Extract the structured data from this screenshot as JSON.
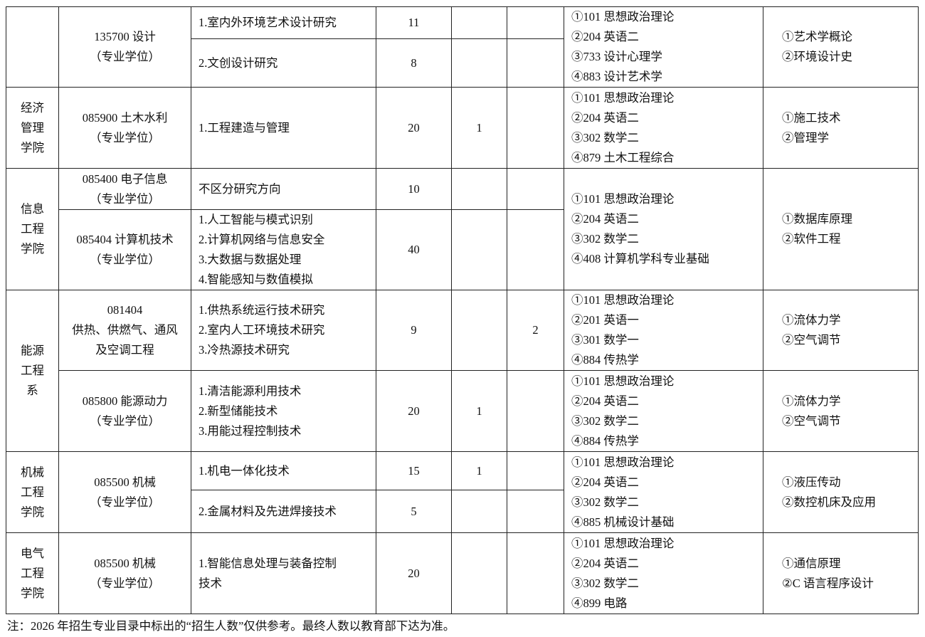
{
  "colleges": [
    {
      "name_lines": [],
      "blocks": [
        {
          "majors": [
            {
              "name_lines": [
                "135700 设计",
                "（专业学位）"
              ],
              "directions": [
                {
                  "lines": [
                    "1.室内外环境艺术设计研究"
                  ],
                  "count": "11",
                  "extra_a": "",
                  "extra_b": ""
                },
                {
                  "lines": [
                    "2.文创设计研究"
                  ],
                  "count": "8",
                  "extra_a": "",
                  "extra_b": ""
                }
              ]
            }
          ],
          "exam": [
            "①101 思想政治理论",
            "②204 英语二",
            "③733 设计心理学",
            "④883 设计艺术学"
          ],
          "retest": [
            "①艺术学概论",
            "②环境设计史"
          ]
        }
      ]
    },
    {
      "name_lines": [
        "经济",
        "管理",
        "学院"
      ],
      "blocks": [
        {
          "majors": [
            {
              "name_lines": [
                "085900 土木水利",
                "（专业学位）"
              ],
              "directions": [
                {
                  "lines": [
                    "1.工程建造与管理"
                  ],
                  "count": "20",
                  "extra_a": "1",
                  "extra_b": ""
                }
              ]
            }
          ],
          "exam": [
            "①101 思想政治理论",
            "②204 英语二",
            "③302 数学二",
            "④879 土木工程综合"
          ],
          "retest": [
            "①施工技术",
            "②管理学"
          ]
        }
      ]
    },
    {
      "name_lines": [
        "信息",
        "工程",
        "学院"
      ],
      "blocks": [
        {
          "majors": [
            {
              "name_lines": [
                "085400 电子信息",
                "（专业学位）"
              ],
              "directions": [
                {
                  "lines": [
                    "不区分研究方向"
                  ],
                  "count": "10",
                  "extra_a": "",
                  "extra_b": ""
                }
              ]
            },
            {
              "name_lines": [
                "085404 计算机技术",
                "（专业学位）"
              ],
              "directions": [
                {
                  "lines": [
                    "1.人工智能与模式识别",
                    "2.计算机网络与信息安全",
                    "3.大数据与数据处理",
                    "4.智能感知与数值模拟"
                  ],
                  "count": "40",
                  "extra_a": "",
                  "extra_b": ""
                }
              ]
            }
          ],
          "exam": [
            "①101 思想政治理论",
            "②204 英语二",
            "③302 数学二",
            "④408 计算机学科专业基础"
          ],
          "retest": [
            "①数据库原理",
            "②软件工程"
          ]
        }
      ]
    },
    {
      "name_lines": [
        "能源",
        "工程",
        "系"
      ],
      "blocks": [
        {
          "majors": [
            {
              "name_lines": [
                "081404",
                "供热、供燃气、通风",
                "及空调工程"
              ],
              "directions": [
                {
                  "lines": [
                    "1.供热系统运行技术研究",
                    "2.室内人工环境技术研究",
                    "3.冷热源技术研究"
                  ],
                  "count": "9",
                  "extra_a": "",
                  "extra_b": "2"
                }
              ]
            }
          ],
          "exam": [
            "①101 思想政治理论",
            "②201 英语一",
            "③301 数学一",
            "④884 传热学"
          ],
          "retest": [
            "①流体力学",
            "②空气调节"
          ]
        },
        {
          "majors": [
            {
              "name_lines": [
                "085800 能源动力",
                "（专业学位）"
              ],
              "directions": [
                {
                  "lines": [
                    "1.清洁能源利用技术",
                    "2.新型储能技术",
                    "3.用能过程控制技术"
                  ],
                  "count": "20",
                  "extra_a": "1",
                  "extra_b": ""
                }
              ]
            }
          ],
          "exam": [
            "①101 思想政治理论",
            "②204 英语二",
            "③302 数学二",
            "④884 传热学"
          ],
          "retest": [
            "①流体力学",
            "②空气调节"
          ]
        }
      ]
    },
    {
      "name_lines": [
        "机械",
        "工程",
        "学院"
      ],
      "blocks": [
        {
          "majors": [
            {
              "name_lines": [
                "085500 机械",
                "（专业学位）"
              ],
              "directions": [
                {
                  "lines": [
                    "1.机电一体化技术"
                  ],
                  "count": "15",
                  "extra_a": "1",
                  "extra_b": ""
                },
                {
                  "lines": [
                    "2.金属材料及先进焊接技术"
                  ],
                  "count": "5",
                  "extra_a": "",
                  "extra_b": ""
                }
              ]
            }
          ],
          "exam": [
            "①101 思想政治理论",
            "②204 英语二",
            "③302 数学二",
            "④885 机械设计基础"
          ],
          "retest": [
            "①液压传动",
            "②数控机床及应用"
          ]
        }
      ]
    },
    {
      "name_lines": [
        "电气",
        "工程",
        "学院"
      ],
      "blocks": [
        {
          "majors": [
            {
              "name_lines": [
                "085500 机械",
                "（专业学位）"
              ],
              "directions": [
                {
                  "lines": [
                    "1.智能信息处理与装备控制",
                    "技术"
                  ],
                  "count": "20",
                  "extra_a": "",
                  "extra_b": ""
                }
              ]
            }
          ],
          "exam": [
            "①101 思想政治理论",
            "②204 英语二",
            "③302 数学二",
            "④899 电路"
          ],
          "retest": [
            "①通信原理",
            "②C 语言程序设计"
          ]
        }
      ]
    }
  ],
  "footnote": "注：2026 年招生专业目录中标出的“招生人数”仅供参考。最终人数以教育部下达为准。"
}
